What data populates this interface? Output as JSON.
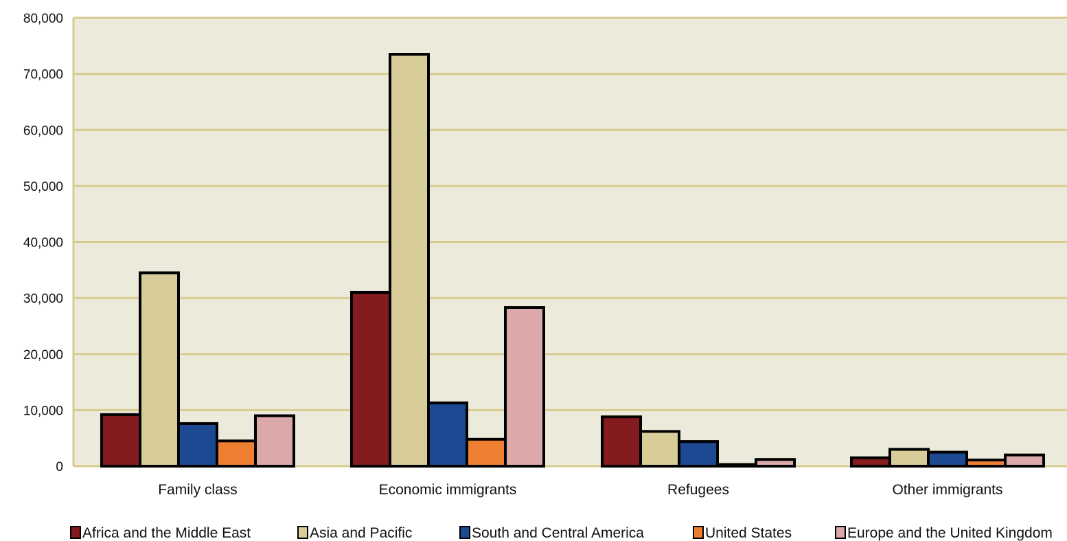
{
  "chart_data": {
    "type": "bar",
    "title": "",
    "xlabel": "",
    "ylabel": "",
    "ylim": [
      0,
      80000
    ],
    "yticks": [
      0,
      10000,
      20000,
      30000,
      40000,
      50000,
      60000,
      70000,
      80000
    ],
    "ytick_labels": [
      "0",
      "10,000",
      "20,000",
      "30,000",
      "40,000",
      "50,000",
      "60,000",
      "70,000",
      "80,000"
    ],
    "grid": true,
    "legend_position": "bottom",
    "plot_background": "#ECEBDB",
    "grid_color": "#D9CB8F",
    "categories": [
      "Family class",
      "Economic immigrants",
      "Refugees",
      "Other immigrants"
    ],
    "series": [
      {
        "name": "Africa and the Middle East",
        "color": "#841B1E",
        "values": [
          9200,
          31000,
          8800,
          1500
        ]
      },
      {
        "name": "Asia and Pacific",
        "color": "#D8CC98",
        "values": [
          34500,
          73500,
          6200,
          3000
        ]
      },
      {
        "name": "South and Central America",
        "color": "#1C4991",
        "values": [
          7600,
          11300,
          4400,
          2500
        ]
      },
      {
        "name": "United States",
        "color": "#EE7F31",
        "values": [
          4500,
          4800,
          300,
          1100
        ]
      },
      {
        "name": "Europe and the United Kingdom",
        "color": "#DBA9A9",
        "values": [
          9000,
          28300,
          1200,
          2000
        ]
      }
    ]
  }
}
